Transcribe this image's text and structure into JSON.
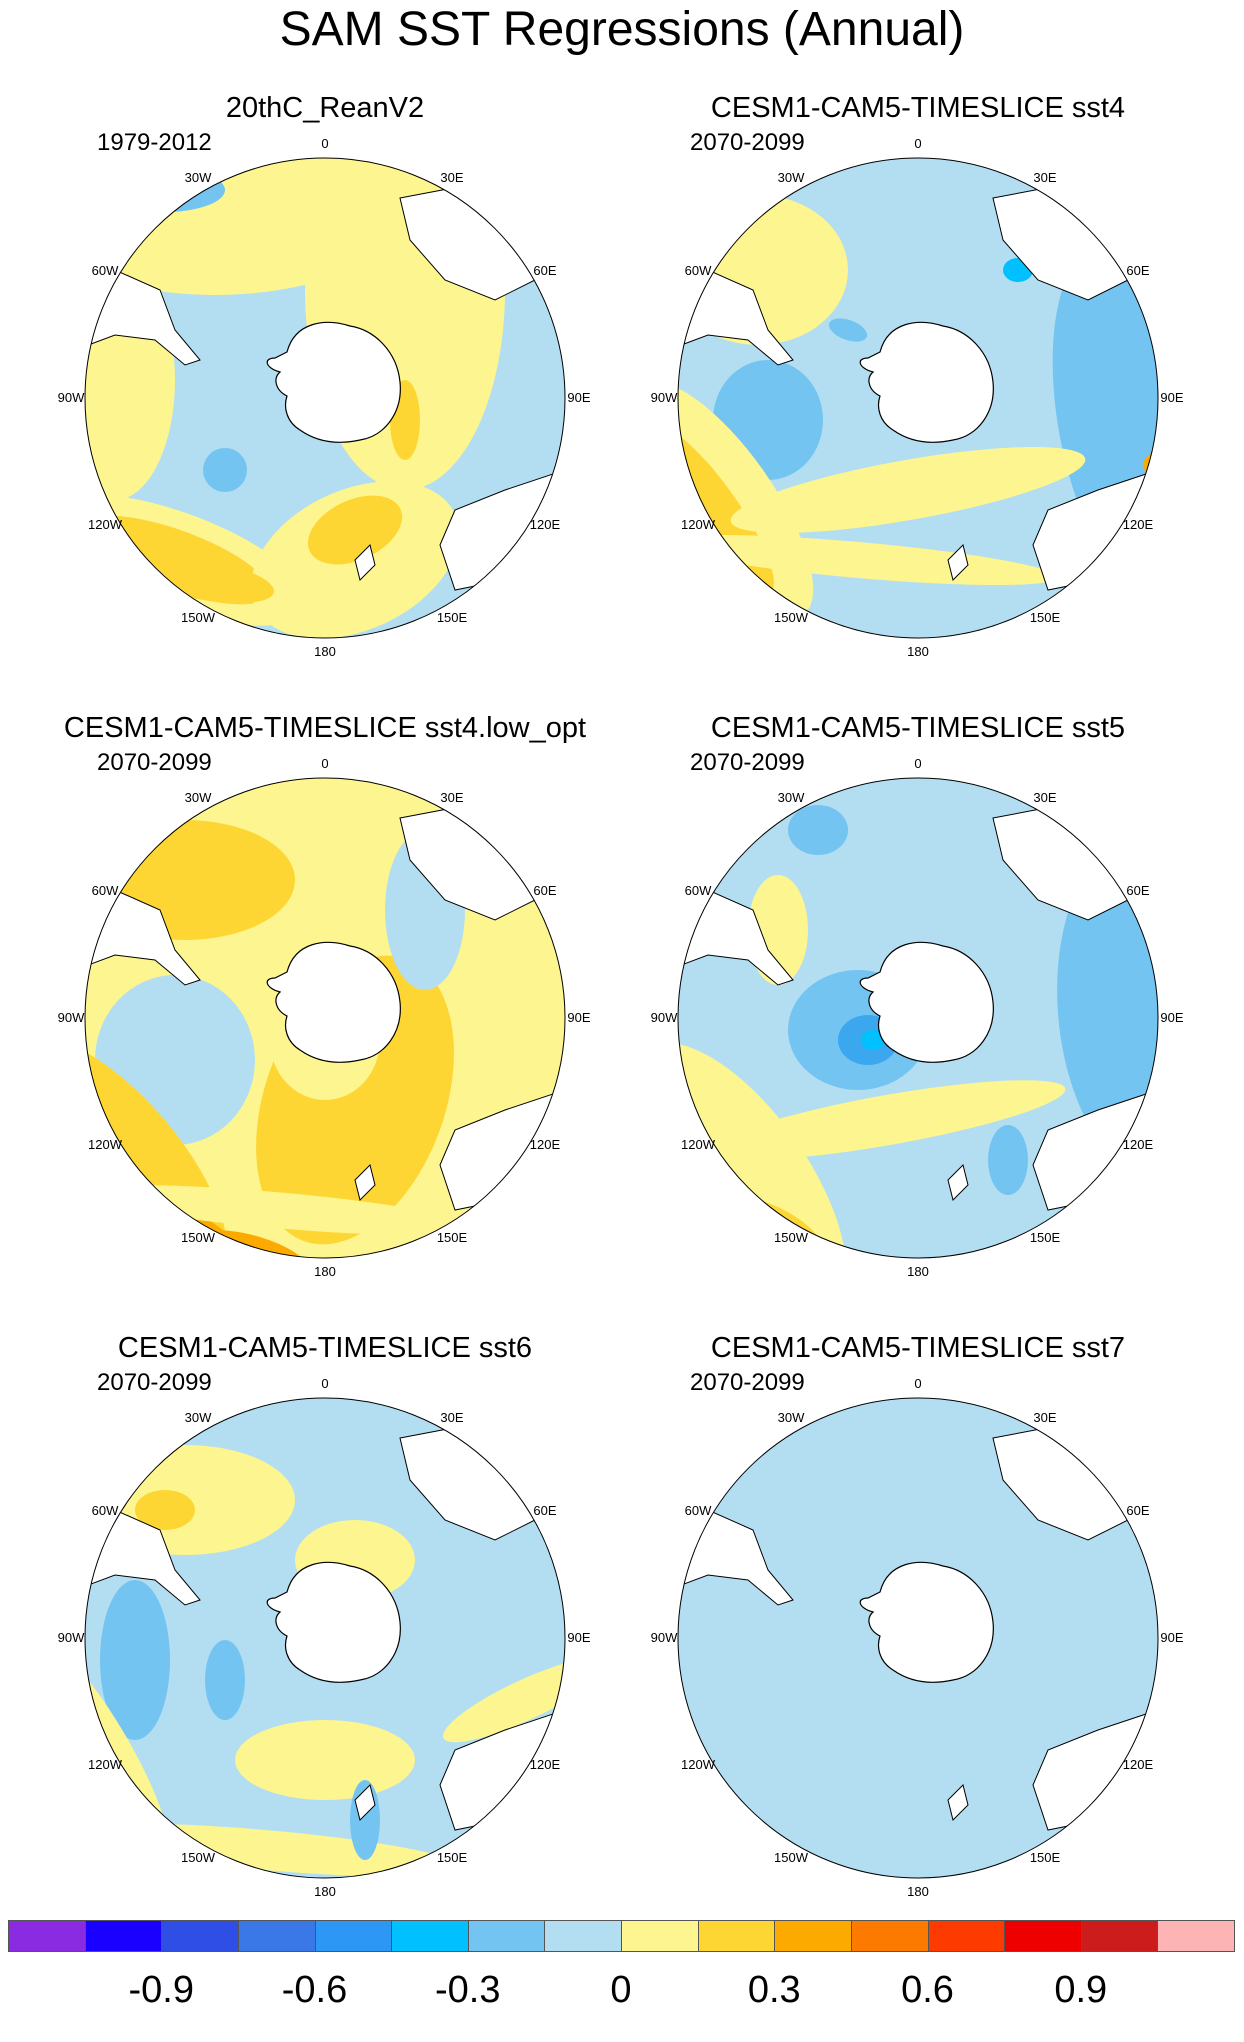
{
  "title": "SAM SST Regressions (Annual)",
  "longitude_labels": [
    "0",
    "30E",
    "60E",
    "90E",
    "120E",
    "150E",
    "180",
    "150W",
    "120W",
    "90W",
    "60W",
    "30W"
  ],
  "panels": [
    {
      "title": "20thC_ReanV2",
      "period": "1979-2012",
      "pattern": "rean"
    },
    {
      "title": "CESM1-CAM5-TIMESLICE sst4",
      "period": "2070-2099",
      "pattern": "sst4"
    },
    {
      "title": "CESM1-CAM5-TIMESLICE sst4.low_opt",
      "period": "2070-2099",
      "pattern": "low_opt"
    },
    {
      "title": "CESM1-CAM5-TIMESLICE sst5",
      "period": "2070-2099",
      "pattern": "sst5"
    },
    {
      "title": "CESM1-CAM5-TIMESLICE sst6",
      "period": "2070-2099",
      "pattern": "sst6"
    },
    {
      "title": "CESM1-CAM5-TIMESLICE sst7",
      "period": "2070-2099",
      "pattern": "sst7"
    }
  ],
  "colorbar": {
    "colors": [
      "#8a2be2",
      "#1a00ff",
      "#2f4ee6",
      "#3a78e8",
      "#2c97f5",
      "#00c0ff",
      "#74c4f1",
      "#b3def2",
      "#fdf58f",
      "#fdd633",
      "#fdaa00",
      "#fd7a00",
      "#fd3a00",
      "#ee0000",
      "#cc1c1c",
      "#fcb4b4"
    ],
    "tick_labels": [
      "-0.9",
      "-0.6",
      "-0.3",
      "0",
      "0.3",
      "0.6",
      "0.9"
    ]
  }
}
